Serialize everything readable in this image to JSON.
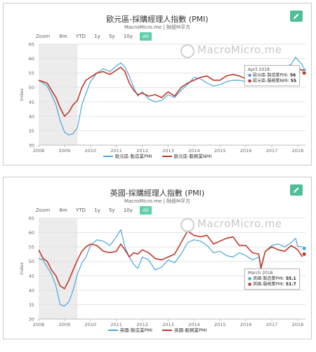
{
  "charts": [
    {
      "title": "歐元區-採購經理人指數 (PMI)",
      "subtitle": "MacroMicro.me | 財經M平方",
      "zoom": {
        "label": "Zoom",
        "buttons": [
          "6m",
          "YTD",
          "1y",
          "5y",
          "10y",
          "All"
        ],
        "active": "All"
      },
      "watermark": "MacroMicro.me",
      "tooltip": {
        "date": "April 2018",
        "rows": [
          {
            "label": "歐元區-製造業PMI:",
            "value": "56"
          },
          {
            "label": "歐元區-服務業NMI:",
            "value": "55"
          }
        ]
      },
      "legend": [
        "歐元區-製造業PMI",
        "歐元區-服務業NMI"
      ]
    },
    {
      "title": "英國-採購經理人指數 (PMI)",
      "subtitle": "MacroMicro.me | 財經M平方",
      "zoom": {
        "label": "Zoom",
        "buttons": [
          "6m",
          "YTD",
          "1y",
          "5y",
          "10y",
          "All"
        ],
        "active": "All"
      },
      "watermark": "MacroMicro.me",
      "tooltip": {
        "date": "March 2018",
        "rows": [
          {
            "label": "英國-製造業PMI:",
            "value": "55.1"
          },
          {
            "label": "英國-服務業PMI:",
            "value": "51.7"
          }
        ]
      },
      "legend": [
        "英國-製造業PMI",
        "英國-服務業PMI"
      ]
    }
  ],
  "chart_data": [
    {
      "type": "line",
      "title": "歐元區-採購經理人指數 (PMI)",
      "ylabel": "Index",
      "ylim": [
        30,
        65
      ],
      "yticks": [
        30,
        35,
        40,
        45,
        50,
        55,
        60,
        65
      ],
      "xlim": [
        2008,
        2018.3
      ],
      "xticks": [
        "2008",
        "2009",
        "2010",
        "2011",
        "2012",
        "2013",
        "2014",
        "2015",
        "2016",
        "2017",
        "2018"
      ],
      "shaded_range": [
        2008.0,
        2009.5
      ],
      "grid": true,
      "legend_position": "bottom",
      "series": [
        {
          "name": "歐元區-製造業PMI",
          "color": "#4aa6d9",
          "x": [
            2008.0,
            2008.17,
            2008.33,
            2008.5,
            2008.67,
            2008.83,
            2009.0,
            2009.17,
            2009.33,
            2009.5,
            2009.67,
            2009.83,
            2010.0,
            2010.25,
            2010.5,
            2010.75,
            2011.0,
            2011.17,
            2011.33,
            2011.5,
            2011.67,
            2011.83,
            2012.0,
            2012.25,
            2012.5,
            2012.75,
            2013.0,
            2013.25,
            2013.5,
            2013.75,
            2014.0,
            2014.25,
            2014.5,
            2014.75,
            2015.0,
            2015.25,
            2015.5,
            2015.75,
            2016.0,
            2016.25,
            2016.5,
            2016.75,
            2017.0,
            2017.25,
            2017.5,
            2017.75,
            2017.92,
            2018.0,
            2018.17,
            2018.25
          ],
          "y": [
            52.5,
            51.5,
            50.5,
            47.5,
            44.0,
            38.5,
            34.5,
            33.5,
            34.0,
            36.0,
            44.0,
            48.0,
            52.0,
            55.0,
            56.5,
            55.5,
            57.5,
            58.5,
            57.0,
            54.0,
            50.0,
            47.0,
            48.5,
            46.0,
            45.0,
            45.5,
            47.5,
            46.5,
            49.0,
            51.0,
            53.5,
            53.0,
            51.5,
            50.5,
            51.0,
            52.0,
            52.5,
            52.5,
            52.0,
            51.5,
            52.0,
            53.0,
            55.0,
            56.5,
            57.0,
            58.0,
            60.5,
            59.6,
            58.0,
            56.0
          ]
        },
        {
          "name": "歐元區-服務業NMI",
          "color": "#c0392b",
          "x": [
            2008.0,
            2008.17,
            2008.33,
            2008.5,
            2008.67,
            2008.83,
            2009.0,
            2009.17,
            2009.33,
            2009.5,
            2009.67,
            2009.83,
            2010.0,
            2010.25,
            2010.5,
            2010.75,
            2011.0,
            2011.17,
            2011.33,
            2011.5,
            2011.67,
            2011.83,
            2012.0,
            2012.25,
            2012.5,
            2012.75,
            2013.0,
            2013.25,
            2013.5,
            2013.75,
            2014.0,
            2014.25,
            2014.5,
            2014.75,
            2015.0,
            2015.25,
            2015.5,
            2015.75,
            2016.0,
            2016.25,
            2016.5,
            2016.75,
            2017.0,
            2017.25,
            2017.5,
            2017.75,
            2017.92,
            2018.0,
            2018.17,
            2018.25
          ],
          "y": [
            52.5,
            52.0,
            51.5,
            49.0,
            46.5,
            43.0,
            40.0,
            41.5,
            44.0,
            45.5,
            50.0,
            52.5,
            53.5,
            55.0,
            55.5,
            54.5,
            56.0,
            57.0,
            55.5,
            51.5,
            49.0,
            47.5,
            48.0,
            47.0,
            47.5,
            46.5,
            48.5,
            47.0,
            50.0,
            51.5,
            52.5,
            53.5,
            54.0,
            52.5,
            52.5,
            54.0,
            54.5,
            54.0,
            53.0,
            53.5,
            52.5,
            53.5,
            54.5,
            55.5,
            55.0,
            55.5,
            56.5,
            56.5,
            56.0,
            55.0
          ]
        }
      ]
    },
    {
      "type": "line",
      "title": "英國-採購經理人指數 (PMI)",
      "ylabel": "Index",
      "ylim": [
        30,
        65
      ],
      "yticks": [
        30,
        35,
        40,
        45,
        50,
        55,
        60,
        65
      ],
      "xlim": [
        2008,
        2018.3
      ],
      "xticks": [
        "2008",
        "2009",
        "2010",
        "2011",
        "2012",
        "2013",
        "2014",
        "2015",
        "2016",
        "2017",
        "2018"
      ],
      "shaded_range": [
        2008.0,
        2009.5
      ],
      "grid": true,
      "legend_position": "bottom",
      "series": [
        {
          "name": "英國-製造業PMI",
          "color": "#4aa6d9",
          "x": [
            2008.0,
            2008.17,
            2008.33,
            2008.5,
            2008.67,
            2008.83,
            2009.0,
            2009.17,
            2009.33,
            2009.5,
            2009.67,
            2009.83,
            2010.0,
            2010.25,
            2010.5,
            2010.75,
            2011.0,
            2011.17,
            2011.33,
            2011.5,
            2011.67,
            2011.83,
            2012.0,
            2012.25,
            2012.5,
            2012.75,
            2013.0,
            2013.25,
            2013.5,
            2013.75,
            2014.0,
            2014.25,
            2014.5,
            2014.75,
            2015.0,
            2015.25,
            2015.5,
            2015.75,
            2016.0,
            2016.25,
            2016.5,
            2016.58,
            2016.75,
            2017.0,
            2017.25,
            2017.5,
            2017.75,
            2017.92,
            2018.0,
            2018.17,
            2018.25
          ],
          "y": [
            51.0,
            50.5,
            48.0,
            45.5,
            41.5,
            35.0,
            34.5,
            36.0,
            40.0,
            45.5,
            49.5,
            51.5,
            55.5,
            57.5,
            57.0,
            55.5,
            58.5,
            61.0,
            55.0,
            51.5,
            49.0,
            47.5,
            51.5,
            50.5,
            47.0,
            48.0,
            50.5,
            49.5,
            52.5,
            56.5,
            57.5,
            57.0,
            55.5,
            53.0,
            53.5,
            52.0,
            51.5,
            53.0,
            52.0,
            50.5,
            51.5,
            48.0,
            53.5,
            55.5,
            56.0,
            55.0,
            56.5,
            58.0,
            55.1,
            55.1,
            54.5
          ]
        },
        {
          "name": "英國-服務業PMI",
          "color": "#c0392b",
          "x": [
            2008.0,
            2008.17,
            2008.33,
            2008.5,
            2008.67,
            2008.83,
            2009.0,
            2009.17,
            2009.33,
            2009.5,
            2009.67,
            2009.83,
            2010.0,
            2010.25,
            2010.5,
            2010.75,
            2011.0,
            2011.17,
            2011.33,
            2011.5,
            2011.67,
            2011.83,
            2012.0,
            2012.25,
            2012.5,
            2012.75,
            2013.0,
            2013.25,
            2013.5,
            2013.75,
            2014.0,
            2014.25,
            2014.5,
            2014.75,
            2015.0,
            2015.25,
            2015.5,
            2015.75,
            2016.0,
            2016.25,
            2016.5,
            2016.58,
            2016.75,
            2017.0,
            2017.25,
            2017.5,
            2017.75,
            2017.92,
            2018.0,
            2018.17,
            2018.25
          ],
          "y": [
            54.0,
            51.0,
            50.0,
            47.0,
            45.0,
            41.5,
            40.5,
            43.5,
            47.0,
            50.5,
            53.5,
            55.0,
            56.0,
            55.5,
            53.5,
            53.0,
            53.5,
            56.0,
            54.0,
            51.5,
            53.0,
            52.5,
            54.0,
            53.0,
            51.0,
            50.5,
            51.5,
            52.5,
            56.5,
            60.5,
            59.0,
            58.5,
            59.0,
            56.0,
            57.0,
            58.0,
            58.5,
            55.5,
            55.5,
            53.0,
            52.5,
            47.5,
            53.5,
            55.0,
            54.0,
            53.5,
            55.5,
            54.5,
            54.0,
            51.7,
            52.5
          ]
        }
      ]
    }
  ]
}
